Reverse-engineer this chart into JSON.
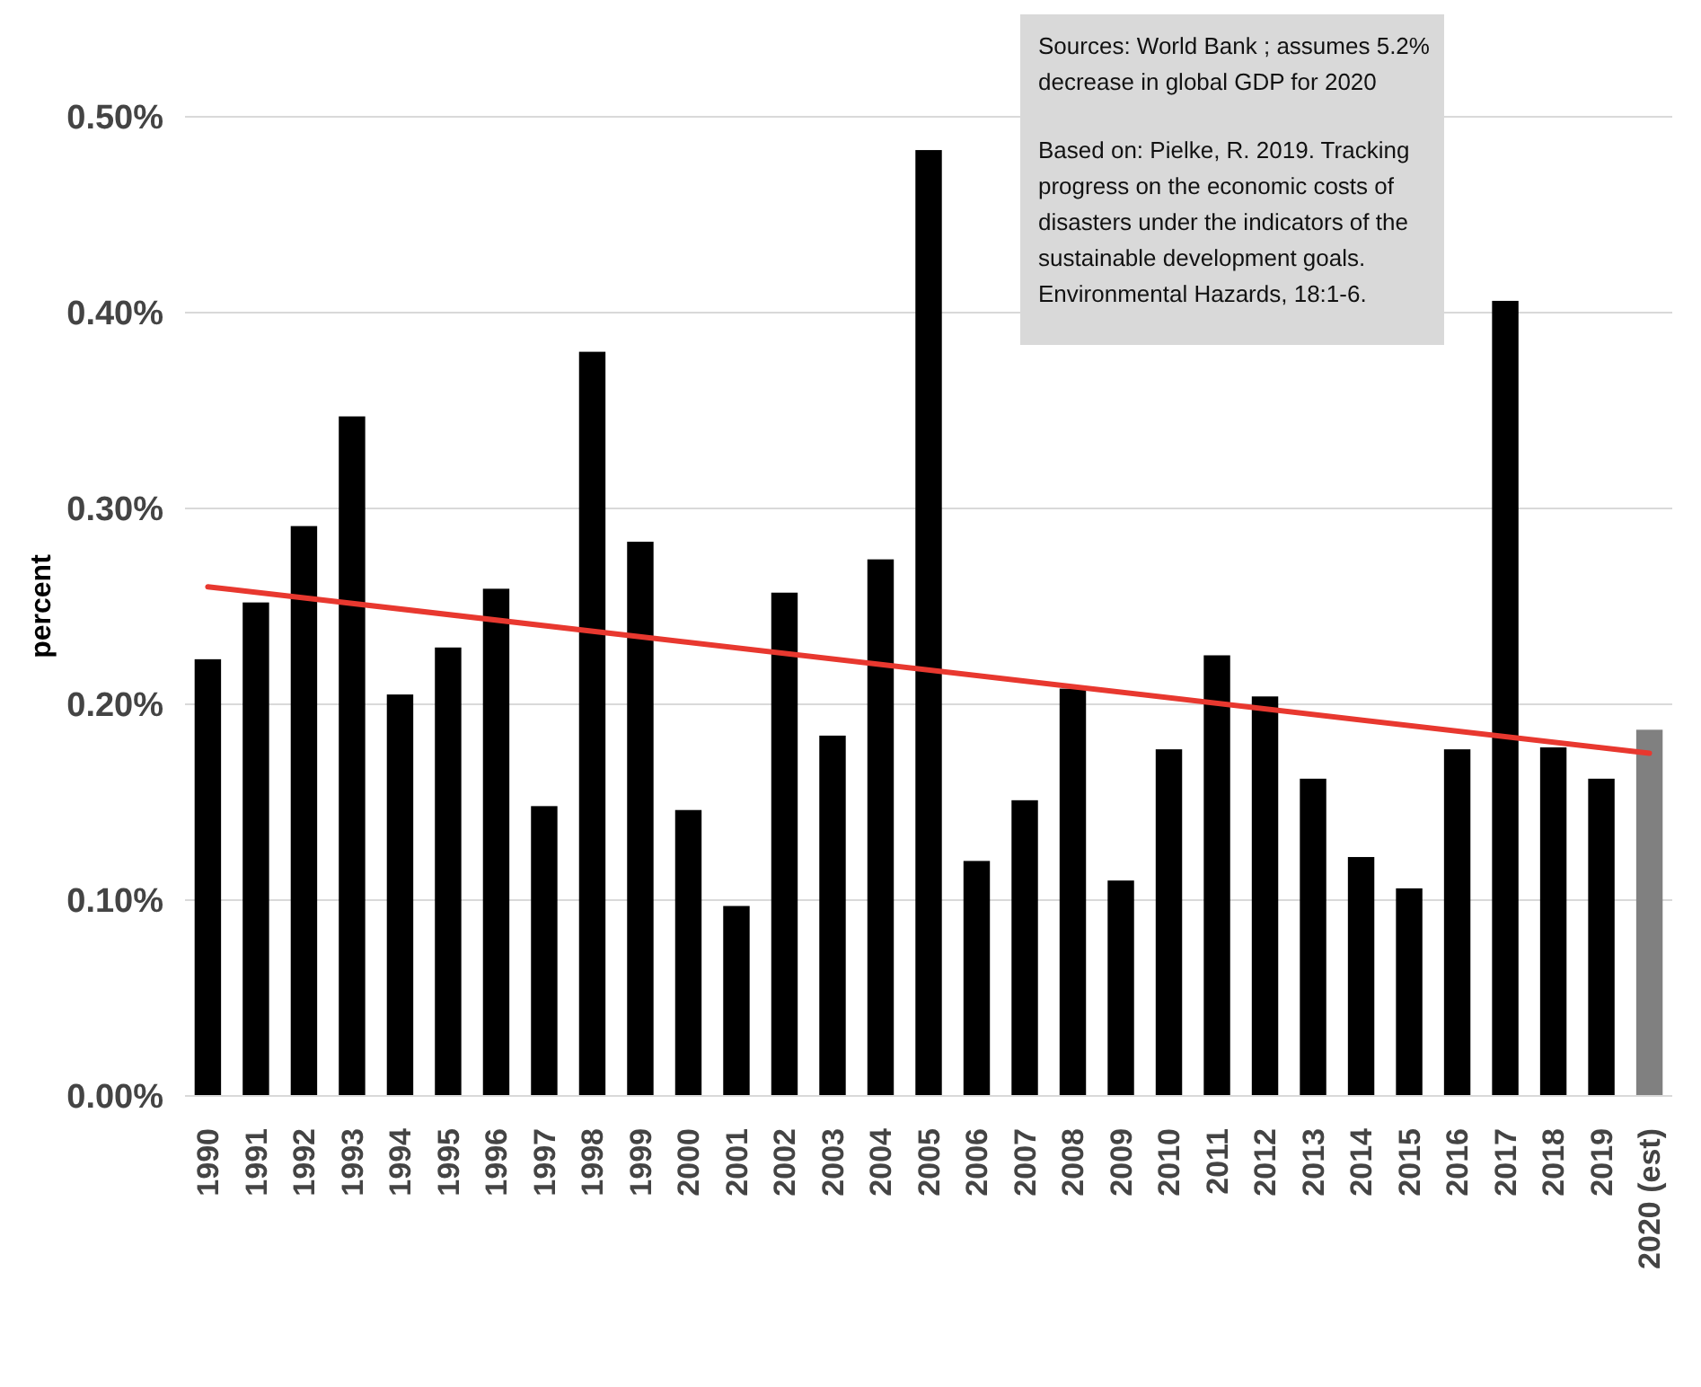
{
  "chart_data": {
    "type": "bar",
    "ylabel": "percent",
    "categories": [
      "1990",
      "1991",
      "1992",
      "1993",
      "1994",
      "1995",
      "1996",
      "1997",
      "1998",
      "1999",
      "2000",
      "2001",
      "2002",
      "2003",
      "2004",
      "2005",
      "2006",
      "2007",
      "2008",
      "2009",
      "2010",
      "2011",
      "2012",
      "2013",
      "2014",
      "2015",
      "2016",
      "2017",
      "2018",
      "2019",
      "2020 (est)"
    ],
    "series": [
      {
        "values": [
          0.223,
          0.252,
          0.291,
          0.347,
          0.205,
          0.229,
          0.259,
          0.148,
          0.38,
          0.283,
          0.146,
          0.097,
          0.257,
          0.184,
          0.274,
          0.483,
          0.12,
          0.151,
          0.208,
          0.11,
          0.177,
          0.225,
          0.204,
          0.162,
          0.122,
          0.106,
          0.177,
          0.406,
          0.178,
          0.162,
          0.187
        ],
        "colors": [
          "#000000",
          "#000000",
          "#000000",
          "#000000",
          "#000000",
          "#000000",
          "#000000",
          "#000000",
          "#000000",
          "#000000",
          "#000000",
          "#000000",
          "#000000",
          "#000000",
          "#000000",
          "#000000",
          "#000000",
          "#000000",
          "#000000",
          "#000000",
          "#000000",
          "#000000",
          "#000000",
          "#000000",
          "#000000",
          "#000000",
          "#000000",
          "#000000",
          "#000000",
          "#000000",
          "#808080"
        ]
      },
      {
        "type": "line",
        "color": "#e8382f",
        "values": [
          0.26,
          null,
          null,
          null,
          null,
          null,
          null,
          null,
          null,
          null,
          null,
          null,
          null,
          null,
          null,
          null,
          null,
          null,
          null,
          null,
          null,
          null,
          null,
          null,
          null,
          null,
          null,
          null,
          null,
          null,
          0.175
        ]
      }
    ],
    "ylim": [
      0,
      0.5
    ],
    "yticks": [
      {
        "value": 0,
        "label": "0.00%"
      },
      {
        "value": 0.1,
        "label": "0.10%"
      },
      {
        "value": 0.2,
        "label": "0.20%"
      },
      {
        "value": 0.3,
        "label": "0.30%"
      },
      {
        "value": 0.4,
        "label": "0.40%"
      },
      {
        "value": 0.5,
        "label": "0.50%"
      }
    ],
    "grid": "y",
    "annotations": [
      "Sources: World Bank ; assumes 5.2% decrease in global GDP for 2020",
      "Based on: Pielke, R. 2019. Tracking progress on the economic costs of disasters under the indicators of the sustainable development goals. Environmental Hazards, 18:1-6."
    ]
  }
}
